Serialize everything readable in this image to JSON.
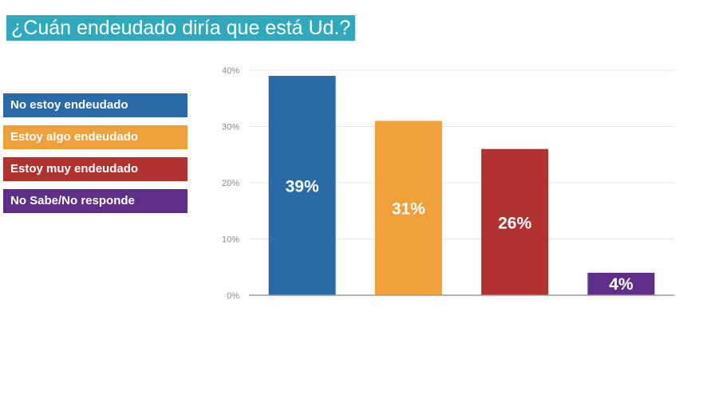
{
  "title": "¿Cuán endeudado diría que está Ud.?",
  "colors": {
    "title_bg": "#31a9bd",
    "blue": "#2a6aa6",
    "orange": "#eea13a",
    "red": "#b1332f",
    "purple": "#5e2f86"
  },
  "chart_data": {
    "type": "bar",
    "categories": [
      "No estoy endeudado",
      "Estoy algo endeudado",
      "Estoy muy endeudado",
      "No Sabe/No responde"
    ],
    "values": [
      39,
      31,
      26,
      4
    ],
    "value_labels": [
      "39%",
      "31%",
      "26%",
      "4%"
    ],
    "colors": [
      "#2a6aa6",
      "#eea13a",
      "#b1332f",
      "#5e2f86"
    ],
    "ylim": [
      0,
      40
    ],
    "yticks": [
      0,
      10,
      20,
      30,
      40
    ],
    "ytick_labels": [
      "0%",
      "10%",
      "20%",
      "30%",
      "40%"
    ],
    "grid": true,
    "legend_position": "left",
    "xlabel": "",
    "ylabel": ""
  }
}
